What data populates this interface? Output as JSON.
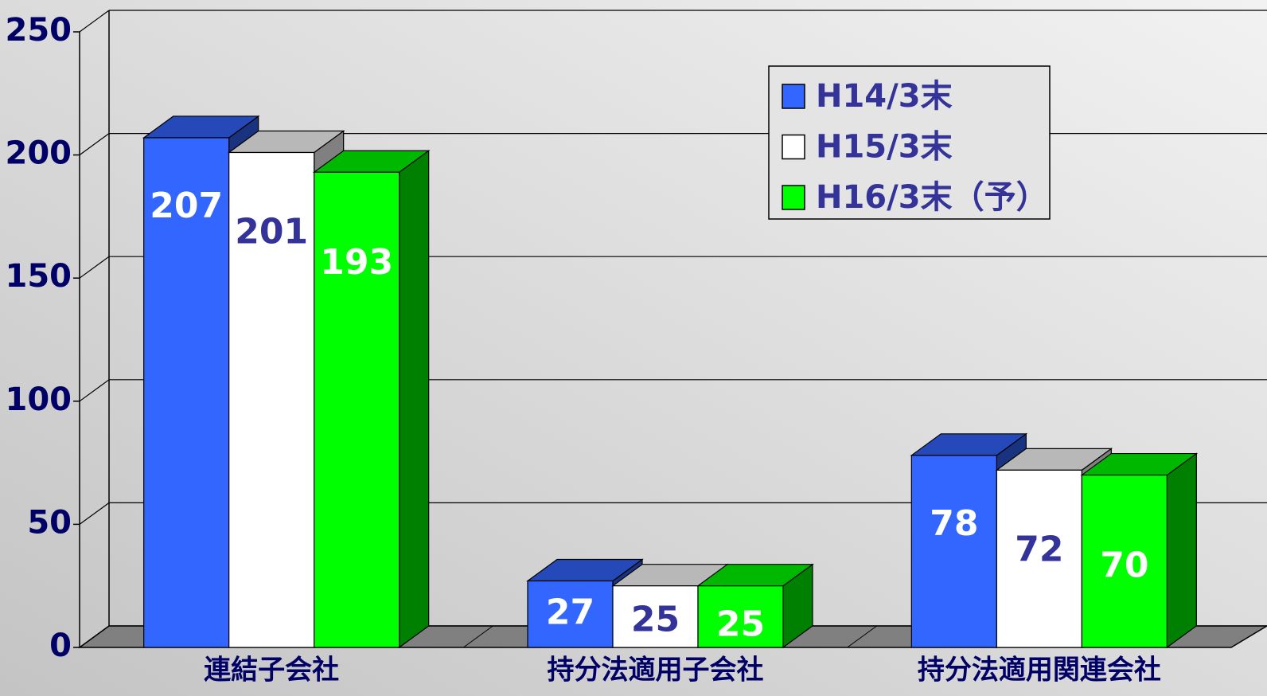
{
  "chart_data": {
    "type": "bar3d",
    "categories": [
      "連結子会社",
      "持分法適用子会社",
      "持分法適用関連会社"
    ],
    "series": [
      {
        "name": "H14/3末",
        "color": "#3366ff",
        "values": [
          207,
          27,
          78
        ]
      },
      {
        "name": "H15/3末",
        "color": "#ffffff",
        "values": [
          201,
          25,
          72
        ]
      },
      {
        "name": "H16/3末（予）",
        "color": "#00ff00",
        "values": [
          193,
          25,
          70
        ]
      }
    ],
    "ylim": [
      0,
      250
    ],
    "yticks": [
      0,
      50,
      100,
      150,
      200,
      250
    ],
    "grid": true,
    "legend": "upper right"
  }
}
